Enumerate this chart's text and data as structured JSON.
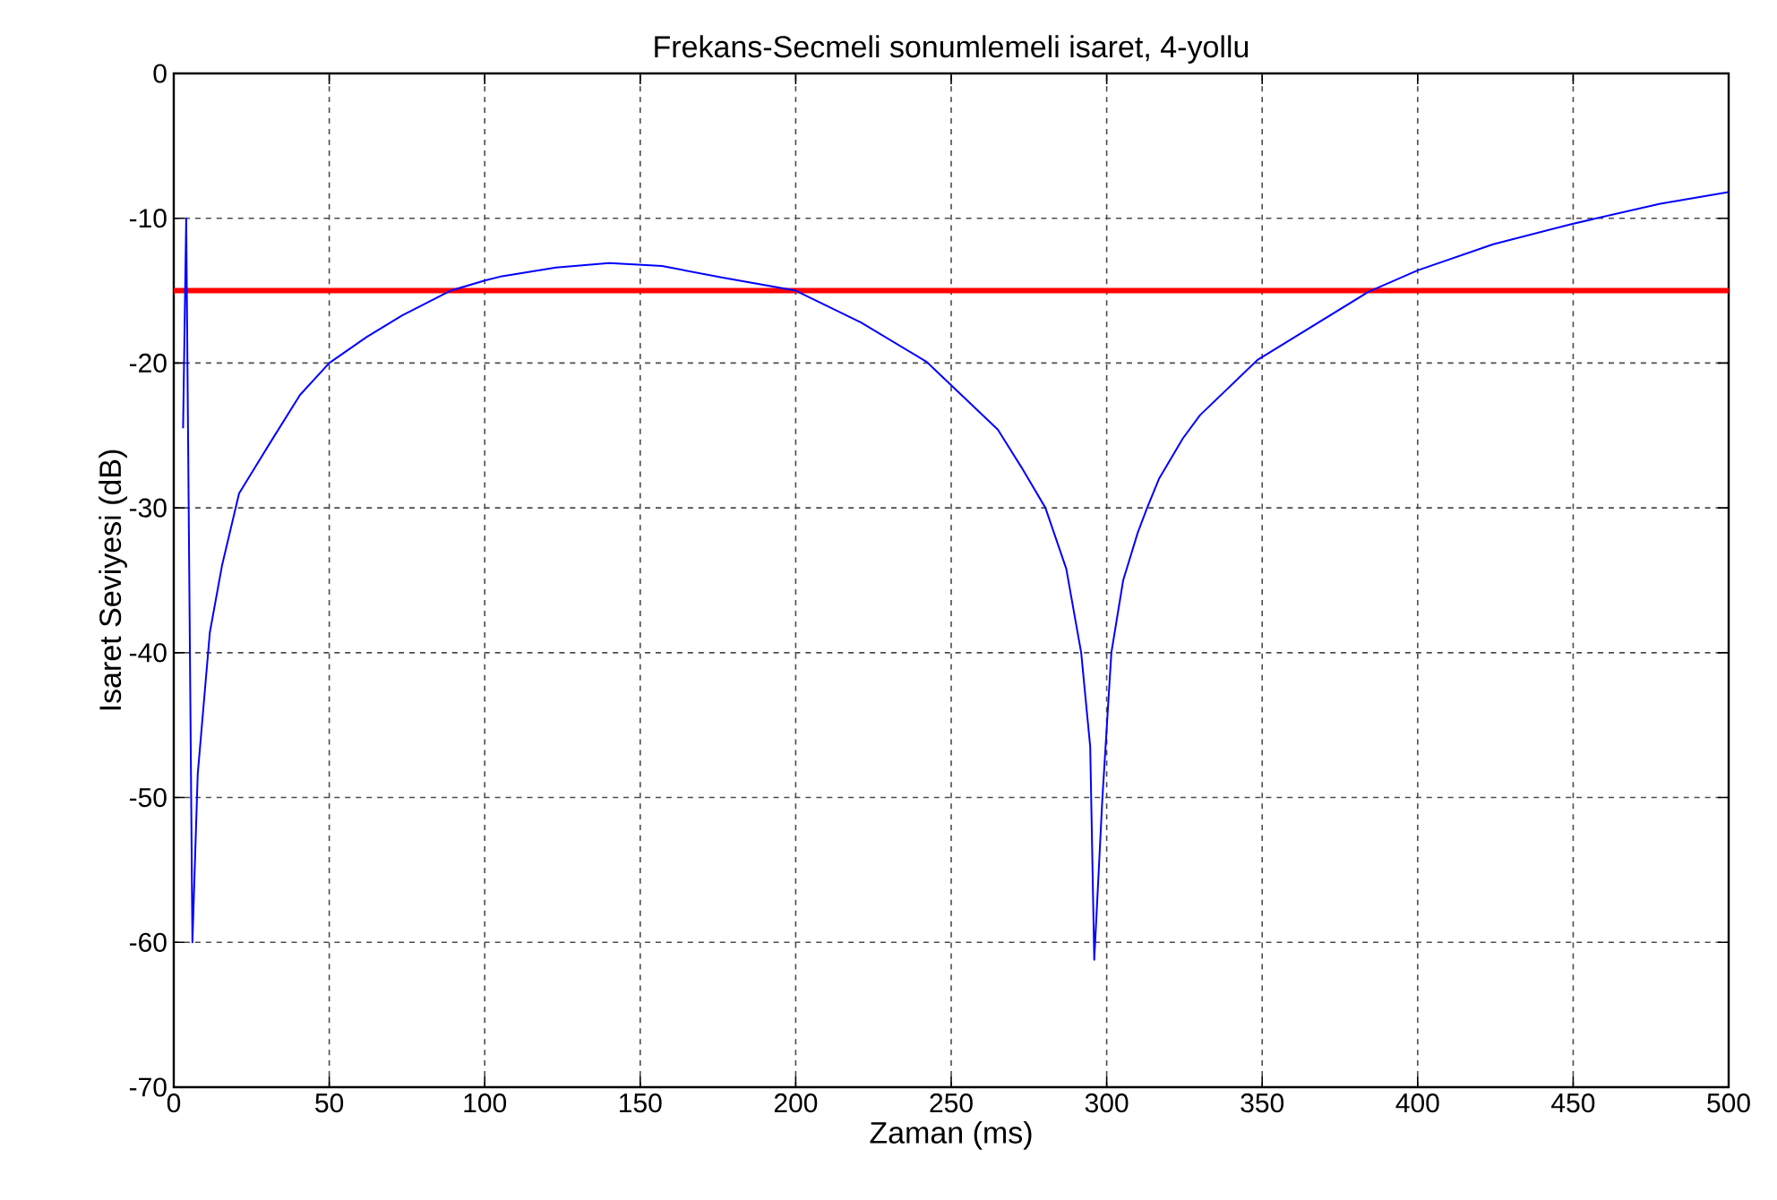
{
  "chart_data": {
    "type": "line",
    "title": "Frekans-Secmeli sonumlemeli isaret, 4-yollu",
    "xlabel": "Zaman (ms)",
    "ylabel": "Isaret Seviyesi (dB)",
    "xlim": [
      0,
      500
    ],
    "ylim": [
      -70,
      0
    ],
    "xticks": [
      0,
      50,
      100,
      150,
      200,
      250,
      300,
      350,
      400,
      450,
      500
    ],
    "yticks": [
      -70,
      -60,
      -50,
      -40,
      -30,
      -20,
      -10,
      0
    ],
    "grid": true,
    "marker": "none",
    "line_style": "solid",
    "series": [
      {
        "color": "#0000ff",
        "x": [
          3,
          4,
          6,
          7.7,
          11.6,
          15.5,
          21,
          31,
          40.6,
          50,
          62,
          73.5,
          89,
          100,
          105.6,
          122.9,
          140,
          157,
          176.5,
          200,
          221,
          242,
          265,
          272.6,
          280.3,
          287,
          291.8,
          294.7,
          296,
          298.6,
          301.5,
          305.3,
          310,
          313,
          316.8,
          324.5,
          330,
          348.4,
          384,
          400,
          424.3,
          449.5,
          478,
          500
        ],
        "values": [
          -24.5,
          -10,
          -60,
          -48.4,
          -38.6,
          -34,
          -29,
          -25.5,
          -22.2,
          -20,
          -18.2,
          -16.7,
          -15,
          -14.3,
          -14,
          -13.4,
          -13.1,
          -13.3,
          -14.1,
          -15,
          -17.2,
          -19.9,
          -24.6,
          -27.2,
          -30,
          -34.2,
          -40,
          -46.5,
          -61.2,
          -50.1,
          -40,
          -35,
          -31.7,
          -30,
          -28,
          -25.2,
          -23.6,
          -19.8,
          -15.1,
          -13.6,
          -11.8,
          -10.4,
          -9,
          -8.2
        ]
      }
    ],
    "ref_lines": [
      {
        "axis": "y",
        "value": -15,
        "color": "#ff0000",
        "line_style": "solid"
      }
    ]
  }
}
